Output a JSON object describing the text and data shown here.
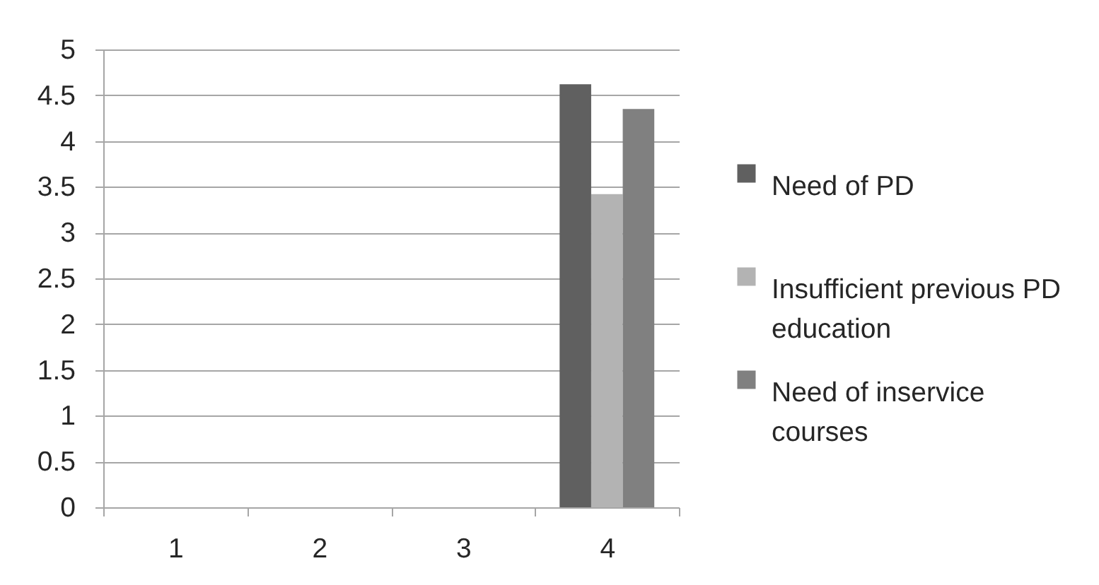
{
  "chart_data": {
    "type": "bar",
    "categories": [
      "1",
      "2",
      "3",
      "4"
    ],
    "series": [
      {
        "name": "Need of PD",
        "color": "#606060",
        "values": [
          null,
          null,
          null,
          4.62
        ]
      },
      {
        "name": "Insufficient previous PD education",
        "color": "#b3b3b3",
        "values": [
          null,
          null,
          null,
          3.42
        ]
      },
      {
        "name": "Need of inservice courses",
        "color": "#808080",
        "values": [
          null,
          null,
          null,
          4.35
        ]
      }
    ],
    "ylim": [
      0,
      5
    ],
    "yticks": [
      0,
      0.5,
      1,
      1.5,
      2,
      2.5,
      3,
      3.5,
      4,
      4.5,
      5
    ],
    "grid": "y",
    "legend": "right"
  }
}
